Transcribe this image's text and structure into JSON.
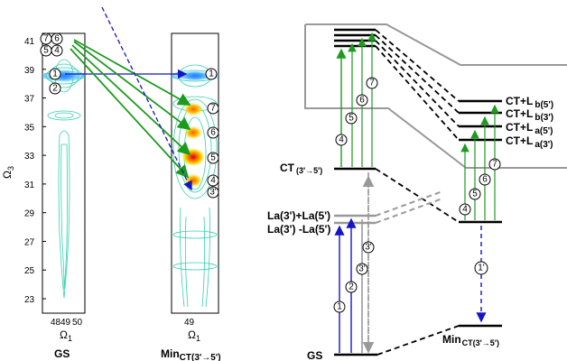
{
  "left_panel": {
    "y_axis_title": "Ω",
    "y_axis_sub": "3",
    "y_ticks": [
      "41",
      "39",
      "37",
      "35",
      "33",
      "31",
      "29",
      "27",
      "25",
      "23"
    ],
    "x_ticks": [
      "48",
      "49",
      "50"
    ],
    "x_axis_title": "Ω",
    "x_axis_sub": "1",
    "gs_title": "GS",
    "min_title": "Min",
    "min_title_sub": "CT(3'→5')",
    "gs_circles": [
      "7",
      "6",
      "5",
      "4",
      "1",
      "2"
    ],
    "min_circles": [
      "1",
      "7",
      "6",
      "5",
      "4",
      "3'"
    ]
  },
  "right_panel": {
    "ct_label": "CT",
    "ct_sub": "(3'→5')",
    "la_plus": "L",
    "la_plus_rest": "a(3')+L",
    "la_plus_sub": "a(5')",
    "la_plus_text": "La(3')+La(5')",
    "la_minus_text": "La(3') -La(5')",
    "gs_label": "GS",
    "min_label": "Min",
    "min_sub": "CT(3'→5')",
    "ct_levels": [
      {
        "main": "CT+L",
        "sub": "b(5')"
      },
      {
        "main": "CT+L",
        "sub": "b(3')"
      },
      {
        "main": "CT+L",
        "sub": "a(5')"
      },
      {
        "main": "CT+L",
        "sub": "a(3')"
      }
    ],
    "left_arrow_circles": [
      "4",
      "5",
      "6",
      "7"
    ],
    "right_arrow_circles": [
      "4",
      "5",
      "6",
      "7"
    ],
    "gs_arrow_circles": [
      "1",
      "2",
      "3'"
    ],
    "relax_circle": "1'"
  },
  "colors": {
    "blue": "#1414c8",
    "green": "#1e9b1e",
    "gray": "#999999",
    "black": "#000000"
  }
}
